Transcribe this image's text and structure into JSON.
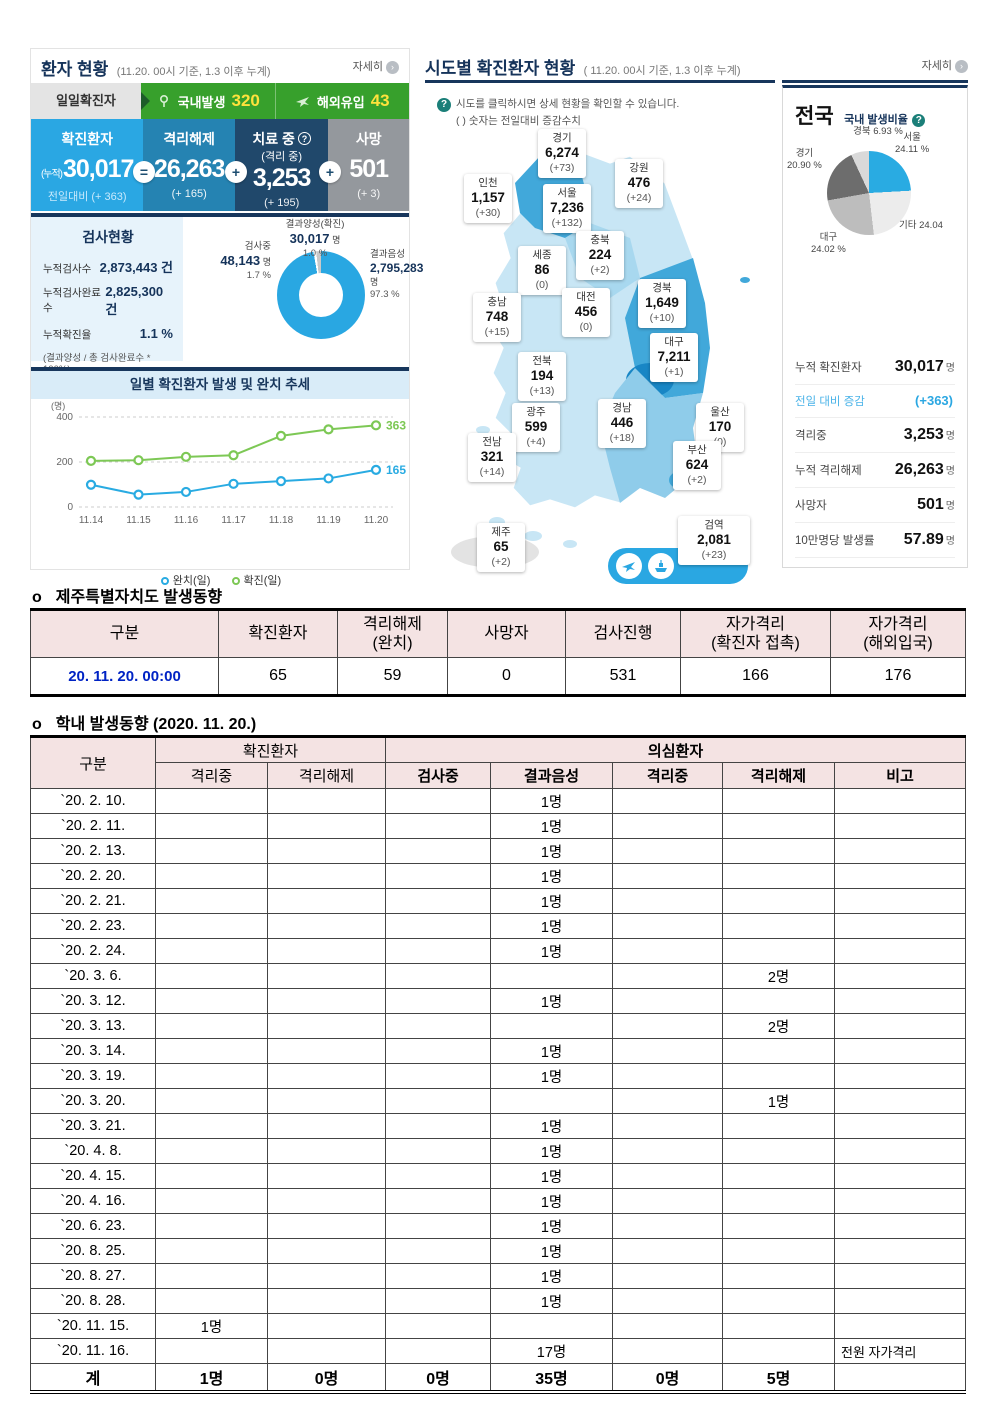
{
  "patient_status": {
    "title": "환자 현황",
    "subtitle": "(11.20. 00시 기준, 1.3 이후 누계)",
    "detail_link": "자세히",
    "daily_tab": "일일확진자",
    "domestic_label": "국내발생",
    "domestic_value": "320",
    "imported_label": "해외유입",
    "imported_value": "43",
    "boxes": [
      {
        "label": "확진환자",
        "prefix": "(누적)",
        "value": "30,017",
        "delta": "전일대비 (+ 363)",
        "color": "#2aa7e3"
      },
      {
        "label": "격리해제",
        "value": "26,263",
        "delta": "(+ 165)",
        "color": "#2583b2"
      },
      {
        "label": "치료 중",
        "sub": "(격리 중)",
        "value": "3,253",
        "delta": "(+ 195)",
        "color": "#20486b"
      },
      {
        "label": "사망",
        "value": "501",
        "delta": "(+ 3)",
        "color": "#94989d"
      }
    ],
    "operators": [
      "=",
      "+",
      "+"
    ],
    "test_status": {
      "title": "검사현황",
      "rows": [
        {
          "label": "누적검사수",
          "value": "2,873,443 건"
        },
        {
          "label": "누적검사완료수",
          "value": "2,825,300 건"
        },
        {
          "label": "누적확진율",
          "value": "1.1 %"
        }
      ],
      "note": "(결과양성 / 총 검사완료수 * 100%)",
      "donut": {
        "positive_label": "결과양성(확진)",
        "positive_value": "30,017",
        "positive_unit": "명",
        "positive_pct": "1.0 %",
        "testing_label": "검사중",
        "testing_value": "48,143",
        "testing_unit": "명",
        "testing_pct": "1.7 %",
        "negative_label": "결과음성",
        "negative_value": "2,795,283",
        "negative_unit": "명",
        "negative_pct": "97.3 %"
      }
    },
    "chart_title": "일별 확진환자 발생 및 완치 추세",
    "chart_ylabel": "(명)"
  },
  "chart_data": [
    {
      "type": "line",
      "title": "일별 확진환자 발생 및 완치 추세",
      "ylabel": "(명)",
      "ylim": [
        0,
        400
      ],
      "yticks": [
        0,
        200,
        400
      ],
      "x": [
        "11.14",
        "11.15",
        "11.16",
        "11.17",
        "11.18",
        "11.19",
        "11.20"
      ],
      "series": [
        {
          "name": "완치(일)",
          "color": "#29abe2",
          "values": [
            99,
            55,
            67,
            103,
            115,
            127,
            165
          ],
          "end_label": "165"
        },
        {
          "name": "확진(일)",
          "color": "#7dc855",
          "values": [
            205,
            208,
            223,
            230,
            316,
            345,
            363
          ],
          "end_label": "363"
        }
      ],
      "legend_position": "bottom",
      "grid": true
    },
    {
      "type": "pie",
      "title": "검사현황 분포",
      "labels": [
        "결과양성(확진)",
        "검사중",
        "결과음성"
      ],
      "values": [
        1.0,
        1.7,
        97.3
      ]
    },
    {
      "type": "pie",
      "title": "국내 발생비율",
      "labels": [
        "서울",
        "기타",
        "대구",
        "경기",
        "경북"
      ],
      "values": [
        24.11,
        24.04,
        24.02,
        20.9,
        6.93
      ]
    }
  ],
  "region_status": {
    "title": "시도별 확진환자 현황",
    "subtitle": "( 11.20. 00시 기준, 1.3 이후 누계)",
    "detail_link": "자세히",
    "note1": "시도를 클릭하시면 상세 현황을 확인할 수 있습니다.",
    "note2": "( ) 숫자는 전일대비 증감수치",
    "regions": [
      {
        "name": "경기",
        "value": "6,274",
        "delta": "(+73)"
      },
      {
        "name": "강원",
        "value": "476",
        "delta": "(+24)"
      },
      {
        "name": "인천",
        "value": "1,157",
        "delta": "(+30)"
      },
      {
        "name": "서울",
        "value": "7,236",
        "delta": "(+132)"
      },
      {
        "name": "충북",
        "value": "224",
        "delta": "(+2)"
      },
      {
        "name": "세종",
        "value": "86",
        "delta": "(0)"
      },
      {
        "name": "충남",
        "value": "748",
        "delta": "(+15)"
      },
      {
        "name": "대전",
        "value": "456",
        "delta": "(0)"
      },
      {
        "name": "경북",
        "value": "1,649",
        "delta": "(+10)"
      },
      {
        "name": "대구",
        "value": "7,211",
        "delta": "(+1)"
      },
      {
        "name": "전북",
        "value": "194",
        "delta": "(+13)"
      },
      {
        "name": "광주",
        "value": "599",
        "delta": "(+4)"
      },
      {
        "name": "경남",
        "value": "446",
        "delta": "(+18)"
      },
      {
        "name": "울산",
        "value": "170",
        "delta": "(0)"
      },
      {
        "name": "전남",
        "value": "321",
        "delta": "(+14)"
      },
      {
        "name": "부산",
        "value": "624",
        "delta": "(+2)"
      },
      {
        "name": "제주",
        "value": "65",
        "delta": "(+2)"
      }
    ],
    "quarantine": {
      "name": "검역",
      "value": "2,081",
      "delta": "(+23)"
    }
  },
  "national": {
    "title": "전국",
    "pie_title": "국내 발생비율",
    "pie_labels": [
      {
        "label": "경북 6.93 %"
      },
      {
        "label": "서울",
        "pct": "24.11 %"
      },
      {
        "label": "경기",
        "pct": "20.90 %"
      },
      {
        "label": "기타 24.04"
      },
      {
        "label": "대구",
        "pct": "24.02 %"
      }
    ],
    "stats": [
      {
        "label": "누적 확진환자",
        "value": "30,017",
        "unit": "명"
      },
      {
        "label": "전일 대비 증감",
        "value": "(+363)",
        "unit": "",
        "highlight": true
      },
      {
        "label": "격리중",
        "value": "3,253",
        "unit": "명"
      },
      {
        "label": "누적 격리해제",
        "value": "26,263",
        "unit": "명"
      },
      {
        "label": "사망자",
        "value": "501",
        "unit": "명"
      },
      {
        "label": "10만명당 발생률",
        "value": "57.89",
        "unit": "명"
      }
    ]
  },
  "jeju": {
    "heading": "제주특별자치도 발생동향",
    "bullet": "o",
    "headers": [
      "구분",
      "확진환자",
      "격리해제\n(완치)",
      "사망자",
      "검사진행",
      "자가격리\n(확진자 접촉)",
      "자가격리\n(해외입국)"
    ],
    "row": {
      "label": "20. 11. 20. 00:00",
      "values": [
        "65",
        "59",
        "0",
        "531",
        "166",
        "176"
      ]
    }
  },
  "school": {
    "heading": "학내 발생동향 (2020. 11. 20.)",
    "bullet": "o",
    "col_label": "구분",
    "group_confirmed": "확진환자",
    "group_suspected": "의심환자",
    "sub_headers": [
      "격리중",
      "격리해제",
      "검사중",
      "결과음성",
      "격리중",
      "격리해제",
      "비고"
    ],
    "rows": [
      {
        "date": "`20. 2. 10.",
        "cells": [
          "",
          "",
          "",
          "1명",
          "",
          "",
          ""
        ]
      },
      {
        "date": "`20. 2. 11.",
        "cells": [
          "",
          "",
          "",
          "1명",
          "",
          "",
          ""
        ]
      },
      {
        "date": "`20. 2. 13.",
        "cells": [
          "",
          "",
          "",
          "1명",
          "",
          "",
          ""
        ]
      },
      {
        "date": "`20. 2. 20.",
        "cells": [
          "",
          "",
          "",
          "1명",
          "",
          "",
          ""
        ]
      },
      {
        "date": "`20. 2. 21.",
        "cells": [
          "",
          "",
          "",
          "1명",
          "",
          "",
          ""
        ]
      },
      {
        "date": "`20. 2. 23.",
        "cells": [
          "",
          "",
          "",
          "1명",
          "",
          "",
          ""
        ]
      },
      {
        "date": "`20. 2. 24.",
        "cells": [
          "",
          "",
          "",
          "1명",
          "",
          "",
          ""
        ]
      },
      {
        "date": "`20. 3.  6.",
        "cells": [
          "",
          "",
          "",
          "",
          "",
          "2명",
          ""
        ]
      },
      {
        "date": "`20. 3. 12.",
        "cells": [
          "",
          "",
          "",
          "1명",
          "",
          "",
          ""
        ]
      },
      {
        "date": "`20. 3. 13.",
        "cells": [
          "",
          "",
          "",
          "",
          "",
          "2명",
          ""
        ]
      },
      {
        "date": "`20. 3. 14.",
        "cells": [
          "",
          "",
          "",
          "1명",
          "",
          "",
          ""
        ]
      },
      {
        "date": "`20. 3. 19.",
        "cells": [
          "",
          "",
          "",
          "1명",
          "",
          "",
          ""
        ]
      },
      {
        "date": "`20. 3. 20.",
        "cells": [
          "",
          "",
          "",
          "",
          "",
          "1명",
          ""
        ]
      },
      {
        "date": "`20. 3. 21.",
        "cells": [
          "",
          "",
          "",
          "1명",
          "",
          "",
          ""
        ]
      },
      {
        "date": "`20. 4.  8.",
        "cells": [
          "",
          "",
          "",
          "1명",
          "",
          "",
          ""
        ]
      },
      {
        "date": "`20. 4. 15.",
        "cells": [
          "",
          "",
          "",
          "1명",
          "",
          "",
          ""
        ]
      },
      {
        "date": "`20. 4. 16.",
        "cells": [
          "",
          "",
          "",
          "1명",
          "",
          "",
          ""
        ]
      },
      {
        "date": "`20. 6. 23.",
        "cells": [
          "",
          "",
          "",
          "1명",
          "",
          "",
          ""
        ]
      },
      {
        "date": "`20. 8. 25.",
        "cells": [
          "",
          "",
          "",
          "1명",
          "",
          "",
          ""
        ]
      },
      {
        "date": "`20. 8. 27.",
        "cells": [
          "",
          "",
          "",
          "1명",
          "",
          "",
          ""
        ]
      },
      {
        "date": "`20. 8. 28.",
        "cells": [
          "",
          "",
          "",
          "1명",
          "",
          "",
          ""
        ]
      },
      {
        "date": "`20. 11. 15.",
        "cells": [
          "1명",
          "",
          "",
          "",
          "",
          "",
          ""
        ]
      },
      {
        "date": "`20. 11. 16.",
        "cells": [
          "",
          "",
          "",
          "17명",
          "",
          "",
          "전원 자가격리"
        ]
      }
    ],
    "total": {
      "label": "계",
      "cells": [
        "1명",
        "0명",
        "0명",
        "35명",
        "0명",
        "5명",
        ""
      ]
    }
  }
}
